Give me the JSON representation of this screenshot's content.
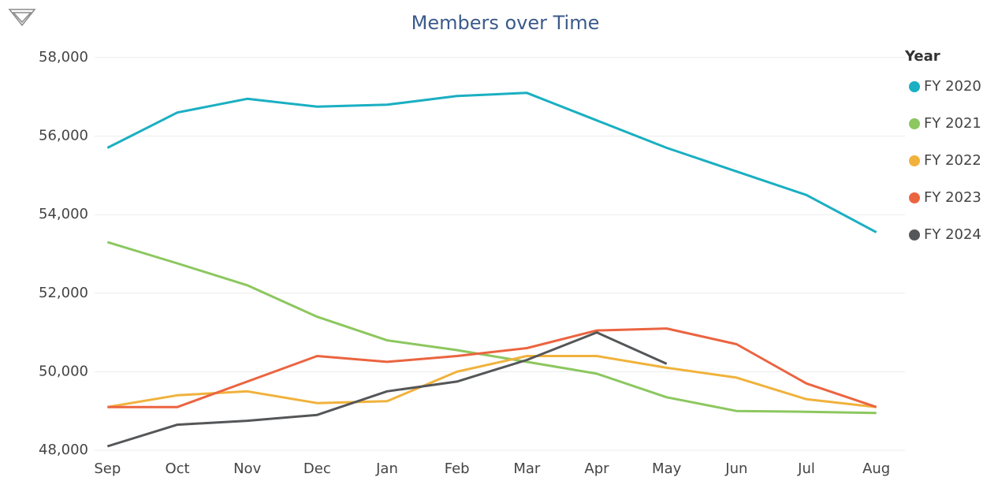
{
  "chart_data": {
    "type": "line",
    "title": "Members over Time",
    "legend_title": "Year",
    "legend_position": "right",
    "grid": true,
    "categories": [
      "Sep",
      "Oct",
      "Nov",
      "Dec",
      "Jan",
      "Feb",
      "Mar",
      "Apr",
      "May",
      "Jun",
      "Jul",
      "Aug"
    ],
    "ylim": [
      48000,
      58000
    ],
    "yticks": [
      {
        "value": 48000,
        "label": "48,000"
      },
      {
        "value": 50000,
        "label": "50,000"
      },
      {
        "value": 52000,
        "label": "52,000"
      },
      {
        "value": 54000,
        "label": "54,000"
      },
      {
        "value": 56000,
        "label": "56,000"
      },
      {
        "value": 58000,
        "label": "58,000"
      }
    ],
    "series": [
      {
        "name": "FY 2020",
        "color": "#1aafc2",
        "values": [
          55700,
          56600,
          56950,
          56750,
          56800,
          57020,
          57100,
          56400,
          55700,
          55100,
          54500,
          53550
        ]
      },
      {
        "name": "FY 2021",
        "color": "#8cc75f",
        "values": [
          53300,
          52760,
          52200,
          51400,
          50800,
          50550,
          50250,
          49950,
          49350,
          49000,
          48980,
          48950
        ]
      },
      {
        "name": "FY 2022",
        "color": "#f0b23c",
        "values": [
          49100,
          49400,
          49500,
          49200,
          49250,
          50000,
          50400,
          50400,
          50100,
          49850,
          49300,
          49100
        ]
      },
      {
        "name": "FY 2023",
        "color": "#eb6440",
        "values": [
          49100,
          49100,
          49750,
          50400,
          50250,
          50400,
          50600,
          51050,
          51100,
          50700,
          49700,
          49100
        ]
      },
      {
        "name": "FY 2024",
        "color": "#545658",
        "values": [
          48100,
          48650,
          48750,
          48900,
          49500,
          49750,
          50300,
          51000,
          50200,
          null,
          null,
          null
        ]
      }
    ]
  }
}
